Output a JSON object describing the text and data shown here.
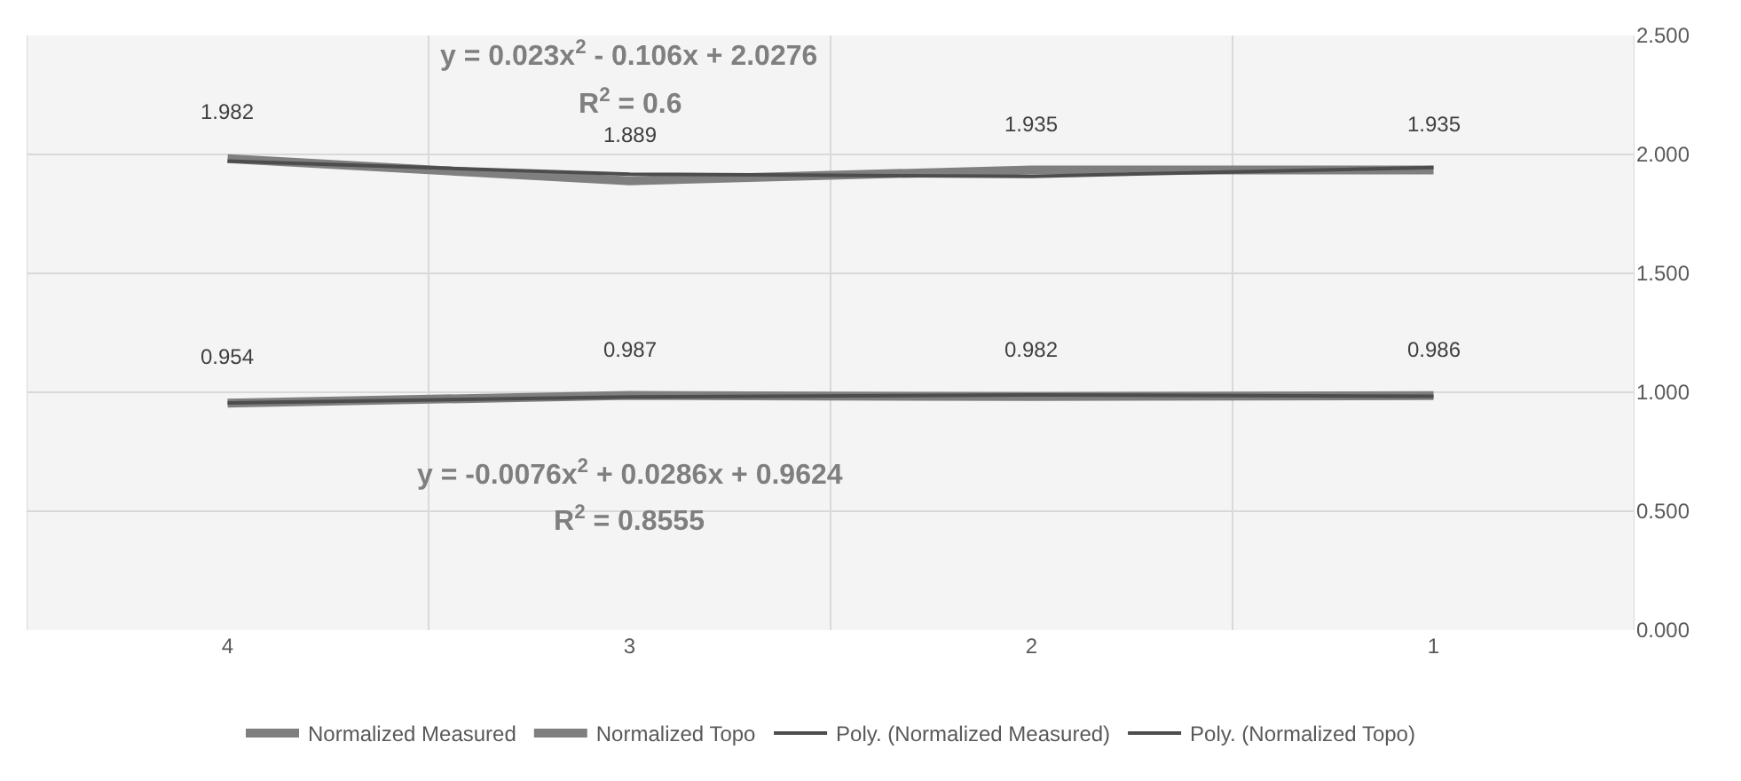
{
  "chart_data": {
    "type": "line",
    "categories": [
      "4",
      "3",
      "2",
      "1"
    ],
    "series": [
      {
        "name": "Normalized Measured",
        "color": "#7f7f7f",
        "values": [
          1.982,
          1.889,
          1.935,
          1.935
        ],
        "value_labels": [
          "1.982",
          "1.889",
          "1.935",
          "1.935"
        ]
      },
      {
        "name": "Normalized Topo",
        "color": "#7f7f7f",
        "values": [
          0.954,
          0.987,
          0.982,
          0.986
        ],
        "value_labels": [
          "0.954",
          "0.987",
          "0.982",
          "0.986"
        ]
      },
      {
        "name": "Poly. (Normalized Measured)",
        "color": "#4d4d4d",
        "values": [
          1.972,
          1.917,
          1.908,
          1.945
        ]
      },
      {
        "name": "Poly. (Normalized Topo)",
        "color": "#4d4d4d",
        "values": [
          0.955,
          0.98,
          0.989,
          0.983
        ]
      }
    ],
    "ylim": [
      0,
      2.5
    ],
    "yticks": [
      {
        "value": 0,
        "label": "0.000"
      },
      {
        "value": 0.5,
        "label": "0.500"
      },
      {
        "value": 1,
        "label": "1.000"
      },
      {
        "value": 1.5,
        "label": "1.500"
      },
      {
        "value": 2,
        "label": "2.000"
      },
      {
        "value": 2.5,
        "label": "2.500"
      }
    ],
    "annotations": [
      "y = 0.023x$^{2}$ - 0.106x + 2.0276",
      "R$^{2}$ = 0.6",
      "y = -0.0076x$^{2}$ + 0.0286x + 0.9624",
      "R$^{2}$ = 0.8555"
    ],
    "grid": true,
    "legend": "bottom",
    "marker": "none",
    "line_style": "solid"
  }
}
